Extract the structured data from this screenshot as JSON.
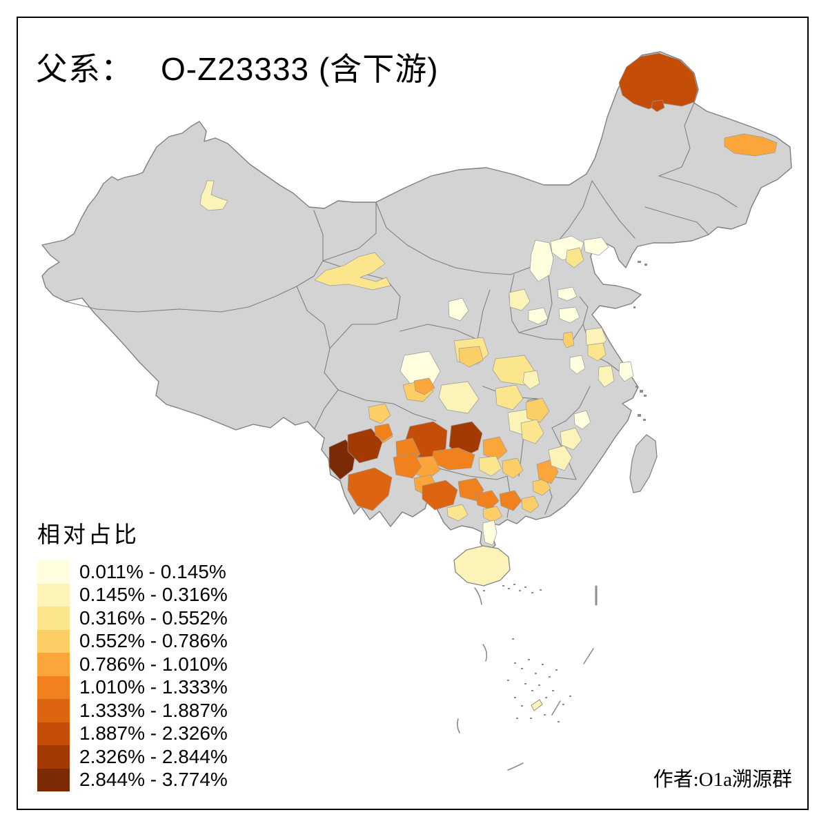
{
  "title": {
    "prefix": "父系：",
    "main": "O-Z23333 (含下游)"
  },
  "legend": {
    "title": "相对占比",
    "classes": [
      {
        "label": "0.011% - 0.145%",
        "color": "#FFFFE0"
      },
      {
        "label": "0.145% - 0.316%",
        "color": "#FBF3B8"
      },
      {
        "label": "0.316% - 0.552%",
        "color": "#FBE68E"
      },
      {
        "label": "0.552% - 0.786%",
        "color": "#FBCF66"
      },
      {
        "label": "0.786% - 1.010%",
        "color": "#FBA53B"
      },
      {
        "label": "1.010% - 1.333%",
        "color": "#F0811C"
      },
      {
        "label": "1.333% - 1.887%",
        "color": "#DD6410"
      },
      {
        "label": "1.887% - 2.326%",
        "color": "#C44D08"
      },
      {
        "label": "2.326% - 2.844%",
        "color": "#A33A04"
      },
      {
        "label": "2.844% - 3.774%",
        "color": "#7A2B06"
      }
    ]
  },
  "attribution": "作者:O1a溯源群",
  "map": {
    "land_color": "#D3D3D3",
    "border_color": "#7F7F7F",
    "sea_color": "#FFFFFF",
    "frame_color": "#000000",
    "islet_color": "#8C8C8C"
  }
}
